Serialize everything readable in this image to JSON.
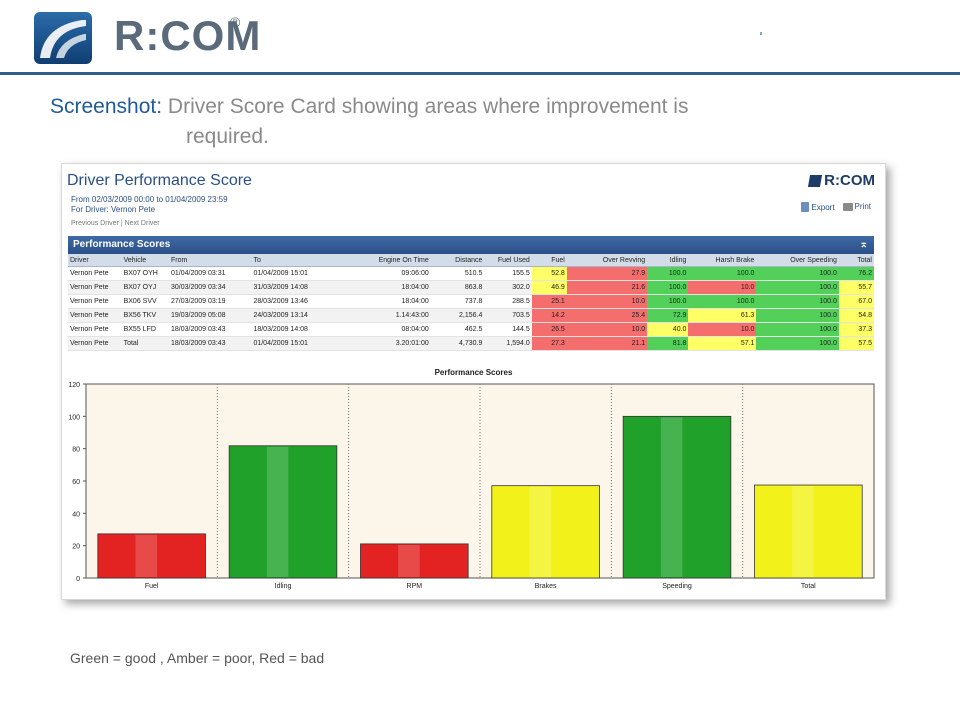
{
  "header": {
    "brand": "R:COM",
    "registered": "®"
  },
  "caption": {
    "label": "Screenshot:",
    "line1": "Driver Score Card showing areas where improvement is",
    "line2": "required."
  },
  "report": {
    "title": "Driver Performance Score",
    "range": "From 02/03/2009 00:00 to 01/04/2009 23:59",
    "driver": "For Driver: Vernon Pete",
    "prev": "Previous Driver",
    "sep": "|",
    "next": "Next Driver",
    "logo": "R:COM",
    "export": "Export",
    "print": "Print"
  },
  "panel": {
    "title": "Performance Scores",
    "collapse": "⌅"
  },
  "table": {
    "columns": [
      "Driver",
      "Vehicle",
      "From",
      "To",
      "Engine On Time",
      "Distance",
      "Fuel Used",
      "Fuel",
      "Over Revving",
      "Idling",
      "Harsh Brake",
      "Over Speeding",
      "Total"
    ],
    "rows": [
      {
        "cells": [
          "Vernon Pete",
          "BX07 OYH",
          "01/04/2009 03:31",
          "01/04/2009 15:01",
          "09:06:00",
          "510.5",
          "155.5",
          "52.8",
          "27.9",
          "100.0",
          "100.0",
          "100.0",
          "76.2"
        ],
        "colors": [
          "",
          "",
          "",
          "",
          "",
          "",
          "",
          "y",
          "r",
          "g",
          "g",
          "g",
          "g"
        ]
      },
      {
        "cells": [
          "Vernon Pete",
          "BX07 OYJ",
          "30/03/2009 03:34",
          "31/03/2009 14:08",
          "18:04:00",
          "863.8",
          "302.0",
          "46.9",
          "21.6",
          "100.0",
          "10.0",
          "100.0",
          "55.7"
        ],
        "colors": [
          "",
          "",
          "",
          "",
          "",
          "",
          "",
          "y",
          "r",
          "g",
          "r",
          "g",
          "y"
        ]
      },
      {
        "cells": [
          "Vernon Pete",
          "BX06 SVV",
          "27/03/2009 03:19",
          "28/03/2009 13:46",
          "18:04:00",
          "737.8",
          "288.5",
          "25.1",
          "10.0",
          "100.0",
          "100.0",
          "100.0",
          "67.0"
        ],
        "colors": [
          "",
          "",
          "",
          "",
          "",
          "",
          "",
          "r",
          "r",
          "g",
          "g",
          "g",
          "y"
        ]
      },
      {
        "cells": [
          "Vernon Pete",
          "BX56 TKV",
          "19/03/2009 05:08",
          "24/03/2009 13:14",
          "1.14:43:00",
          "2,156.4",
          "703.5",
          "14.2",
          "25.4",
          "72.9",
          "61.3",
          "100.0",
          "54.8"
        ],
        "colors": [
          "",
          "",
          "",
          "",
          "",
          "",
          "",
          "r",
          "r",
          "g",
          "y",
          "g",
          "y"
        ]
      },
      {
        "cells": [
          "Vernon Pete",
          "BX55 LFD",
          "18/03/2009 03:43",
          "18/03/2009 14:08",
          "08:04:00",
          "462.5",
          "144.5",
          "26.5",
          "10.0",
          "40.0",
          "10.0",
          "100.0",
          "37.3"
        ],
        "colors": [
          "",
          "",
          "",
          "",
          "",
          "",
          "",
          "r",
          "r",
          "y",
          "r",
          "g",
          "y"
        ]
      },
      {
        "cells": [
          "Vernon Pete",
          "Total",
          "18/03/2009 03:43",
          "01/04/2009 15:01",
          "3.20:01:00",
          "4,730.9",
          "1,594.0",
          "27.3",
          "21.1",
          "81.8",
          "57.1",
          "100.0",
          "57.5"
        ],
        "colors": [
          "",
          "",
          "",
          "",
          "",
          "",
          "",
          "r",
          "r",
          "g",
          "y",
          "g",
          "y"
        ]
      }
    ]
  },
  "chart_data": {
    "type": "bar",
    "title": "Performance Scores",
    "categories": [
      "Fuel",
      "Idling",
      "RPM",
      "Brakes",
      "Speeding",
      "Total"
    ],
    "values": [
      27.3,
      81.8,
      21.1,
      57.1,
      100.0,
      57.5
    ],
    "bar_colors": [
      "#e32222",
      "#1fa12a",
      "#e32222",
      "#f2f21a",
      "#1fa12a",
      "#f2f21a"
    ],
    "ylim": [
      0,
      120
    ],
    "yticks": [
      0,
      20,
      40,
      60,
      80,
      100,
      120
    ],
    "grid": false
  },
  "legend": {
    "text": "Green = good , Amber = poor, Red = bad"
  },
  "colors": {
    "brand_blue": "#2f5f8f",
    "good": "#53d05a",
    "poor": "#ffff66",
    "bad": "#f56e6e"
  }
}
